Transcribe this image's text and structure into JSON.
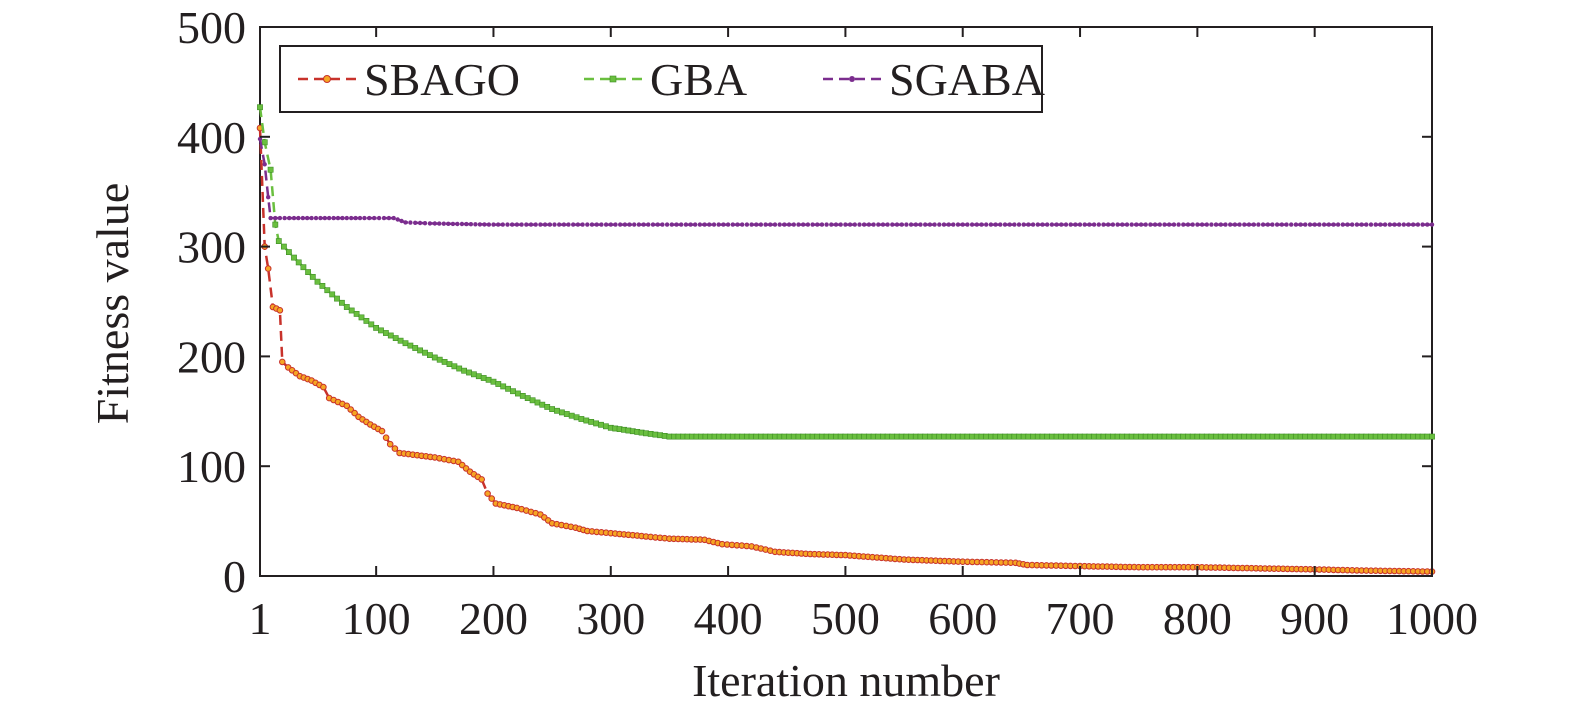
{
  "chart_data": {
    "type": "line",
    "xlabel": "Iteration number",
    "ylabel": "Fitness value",
    "xlim": [
      1,
      1000
    ],
    "ylim": [
      0,
      500
    ],
    "x_ticks": [
      "1",
      "100",
      "200",
      "300",
      "400",
      "500",
      "600",
      "700",
      "800",
      "900",
      "1000"
    ],
    "y_ticks": [
      "0",
      "100",
      "200",
      "300",
      "400",
      "500"
    ],
    "grid": false,
    "legend_position": "top-left",
    "series": [
      {
        "name": "SBAGO",
        "line_color": "#c8322b",
        "marker_fill": "#f5a623",
        "marker_edge": "#c8322b",
        "points": [
          [
            1,
            408
          ],
          [
            5,
            300
          ],
          [
            8,
            280
          ],
          [
            12,
            245
          ],
          [
            18,
            242
          ],
          [
            20,
            195
          ],
          [
            25,
            190
          ],
          [
            35,
            182
          ],
          [
            45,
            178
          ],
          [
            55,
            172
          ],
          [
            60,
            162
          ],
          [
            75,
            155
          ],
          [
            85,
            145
          ],
          [
            95,
            138
          ],
          [
            105,
            132
          ],
          [
            112,
            120
          ],
          [
            120,
            112
          ],
          [
            150,
            108
          ],
          [
            170,
            104
          ],
          [
            180,
            95
          ],
          [
            190,
            88
          ],
          [
            195,
            75
          ],
          [
            202,
            66
          ],
          [
            220,
            62
          ],
          [
            240,
            56
          ],
          [
            250,
            48
          ],
          [
            270,
            44
          ],
          [
            280,
            41
          ],
          [
            300,
            39
          ],
          [
            330,
            36
          ],
          [
            350,
            34
          ],
          [
            380,
            33
          ],
          [
            395,
            29
          ],
          [
            420,
            27
          ],
          [
            440,
            22
          ],
          [
            470,
            20
          ],
          [
            500,
            19
          ],
          [
            550,
            15
          ],
          [
            600,
            13
          ],
          [
            645,
            12
          ],
          [
            655,
            10
          ],
          [
            700,
            9
          ],
          [
            750,
            8
          ],
          [
            800,
            8
          ],
          [
            850,
            7
          ],
          [
            900,
            6
          ],
          [
            940,
            5
          ],
          [
            1000,
            4
          ]
        ]
      },
      {
        "name": "GBA",
        "line_color": "#6abf3f",
        "marker_fill": "#6abf3f",
        "marker_edge": "#3c8c23",
        "points": [
          [
            1,
            427
          ],
          [
            5,
            395
          ],
          [
            10,
            370
          ],
          [
            14,
            320
          ],
          [
            17,
            305
          ],
          [
            30,
            290
          ],
          [
            50,
            268
          ],
          [
            75,
            245
          ],
          [
            100,
            226
          ],
          [
            125,
            212
          ],
          [
            150,
            199
          ],
          [
            175,
            187
          ],
          [
            200,
            177
          ],
          [
            225,
            164
          ],
          [
            250,
            152
          ],
          [
            275,
            143
          ],
          [
            300,
            135
          ],
          [
            330,
            130
          ],
          [
            350,
            127
          ],
          [
            400,
            127
          ],
          [
            500,
            127
          ],
          [
            600,
            127
          ],
          [
            700,
            127
          ],
          [
            800,
            127
          ],
          [
            900,
            127
          ],
          [
            1000,
            127
          ]
        ]
      },
      {
        "name": "SGABA",
        "line_color": "#7b2d8e",
        "marker_fill": "#7b2d8e",
        "marker_edge": "#7b2d8e",
        "points": [
          [
            1,
            398
          ],
          [
            5,
            375
          ],
          [
            8,
            345
          ],
          [
            10,
            326
          ],
          [
            30,
            326
          ],
          [
            60,
            326
          ],
          [
            90,
            326
          ],
          [
            115,
            326
          ],
          [
            125,
            322
          ],
          [
            150,
            321
          ],
          [
            200,
            320
          ],
          [
            300,
            320
          ],
          [
            400,
            320
          ],
          [
            500,
            320
          ],
          [
            600,
            320
          ],
          [
            700,
            320
          ],
          [
            800,
            320
          ],
          [
            900,
            320
          ],
          [
            1000,
            320
          ]
        ]
      }
    ]
  }
}
